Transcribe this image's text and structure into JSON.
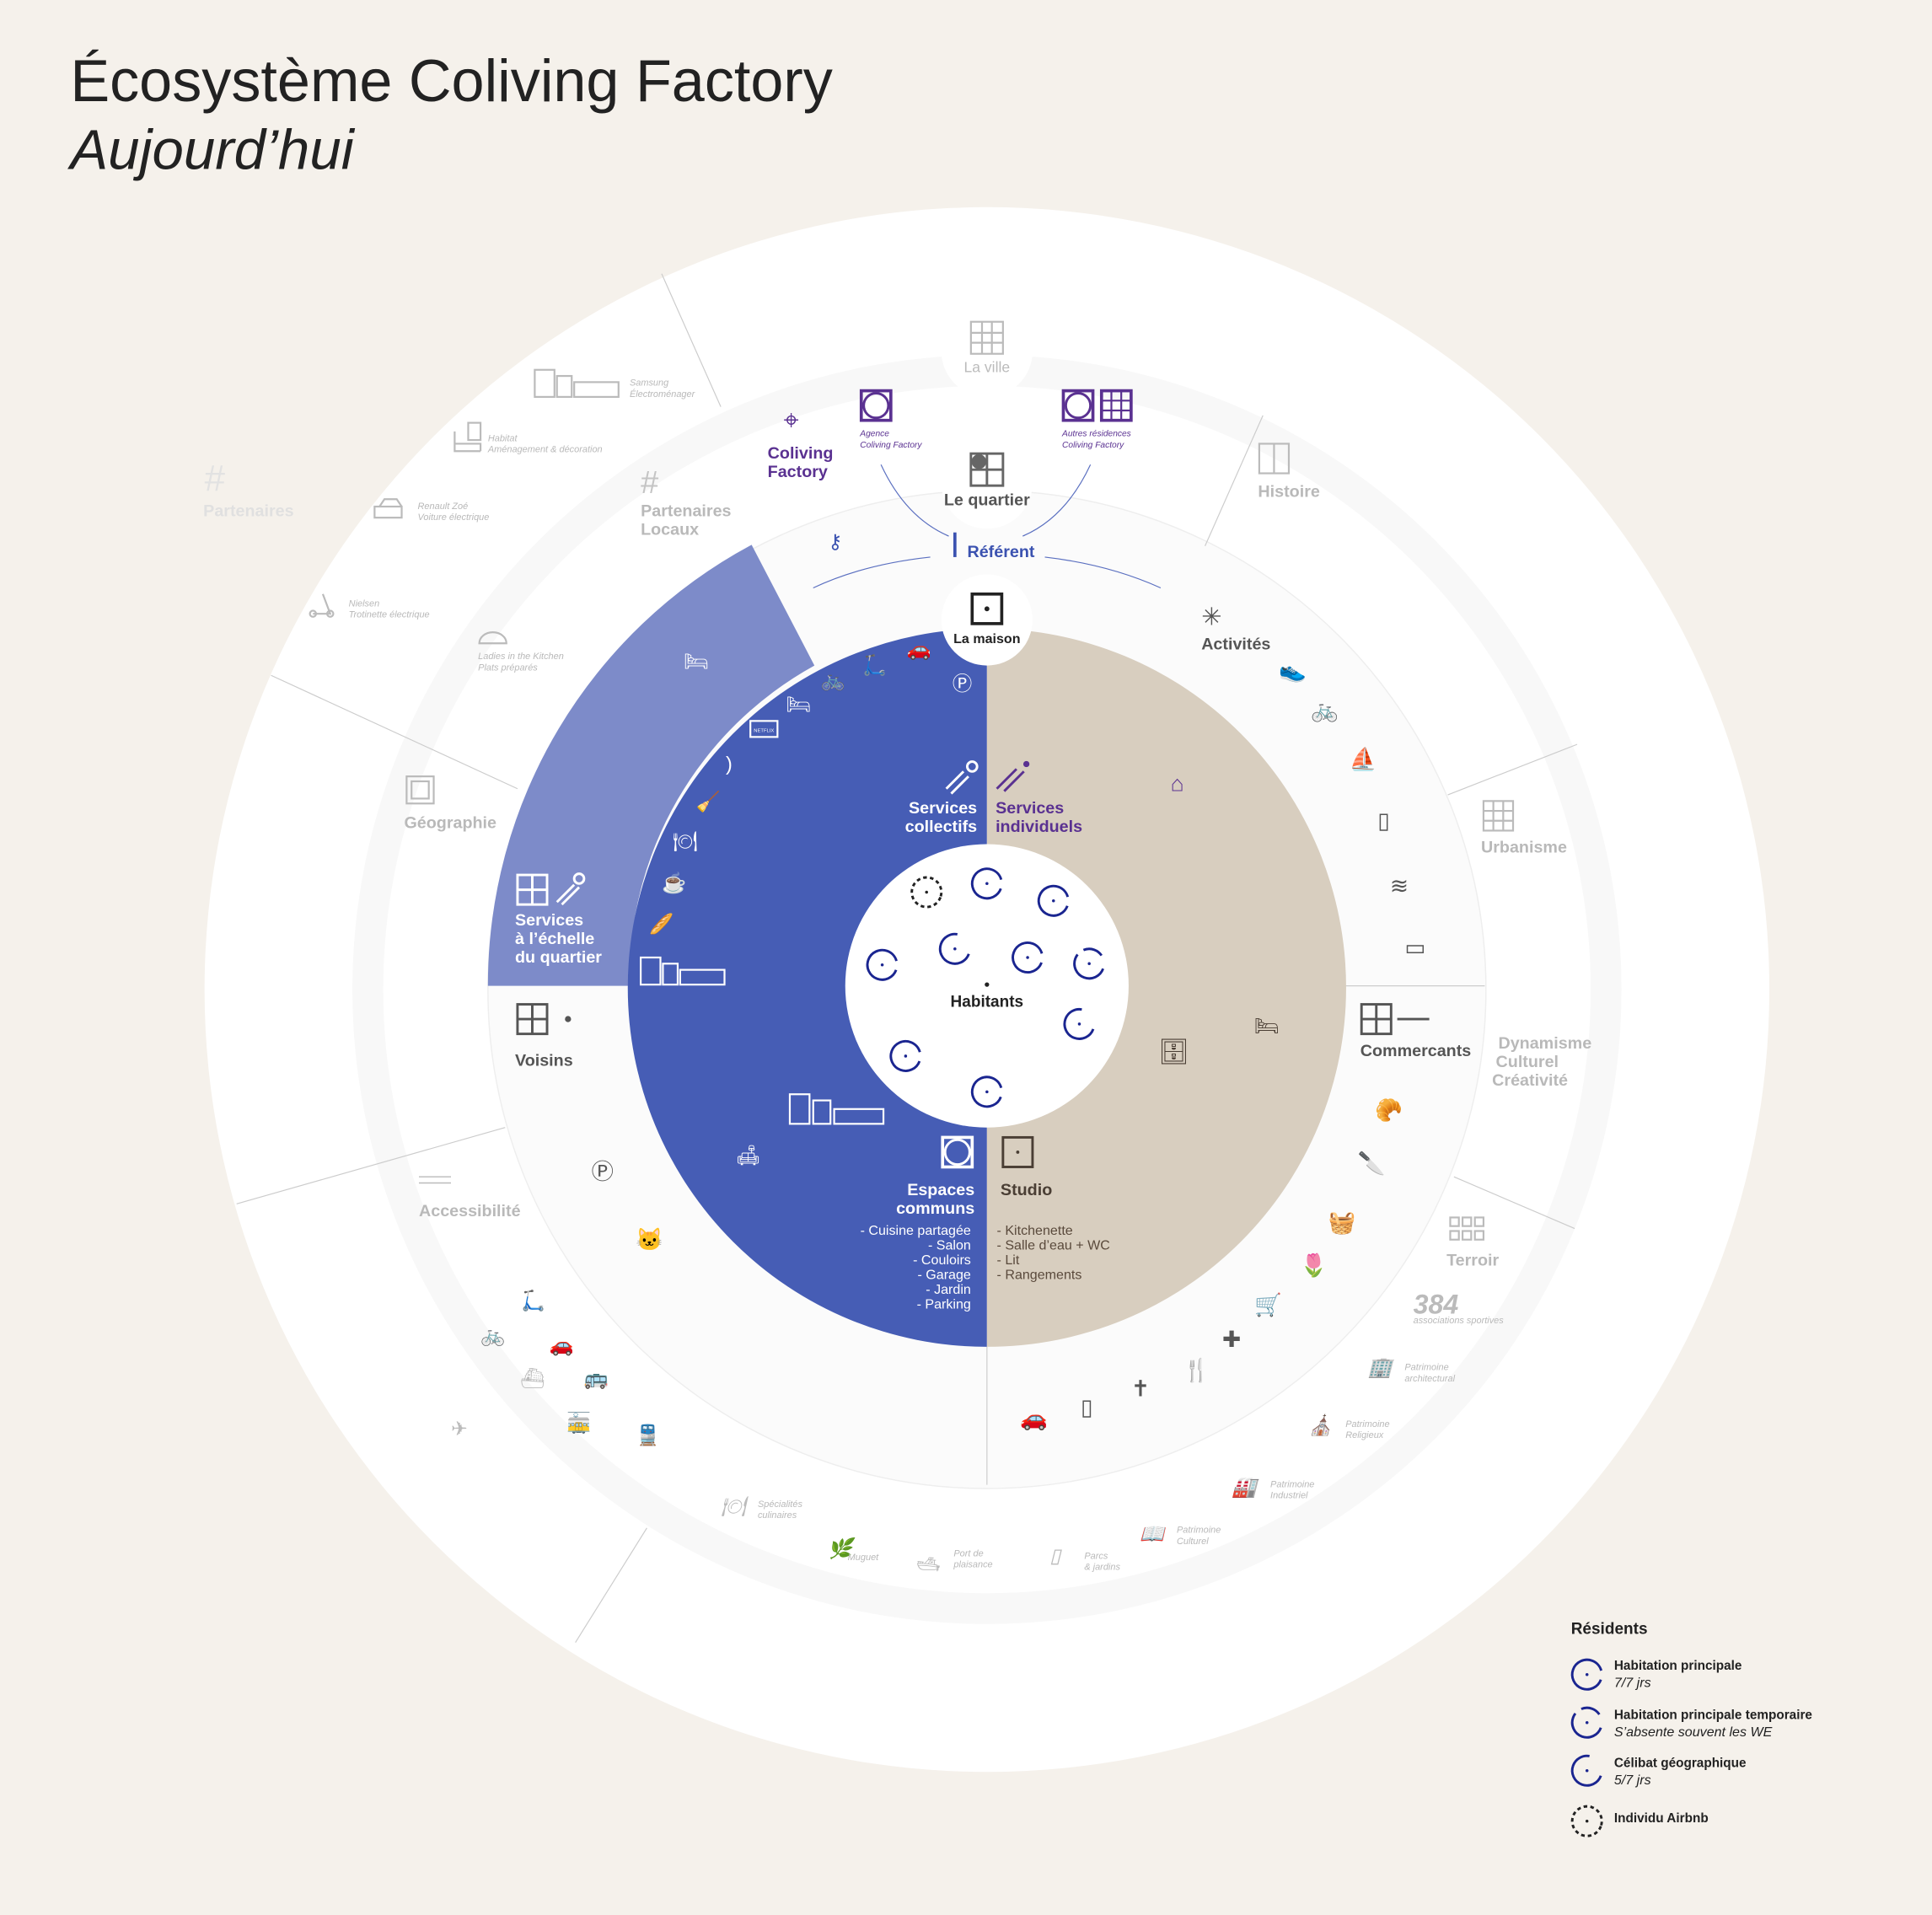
{
  "header": {
    "title": "Écosystème Coliving Factory",
    "subtitle": "Aujourd’hui"
  },
  "colors": {
    "background": "#f5f1eb",
    "blue": "#465db5",
    "light_blue": "#7d8bc9",
    "beige": "#d8cebf",
    "purple": "#5a3191",
    "referent_blue": "#3b52b0",
    "grey_text": "#b9b9b9",
    "legend_navy": "#1a2590"
  },
  "levels": {
    "ville": "La ville",
    "quartier": "Le quartier",
    "maison": "La maison",
    "referent": "Référent",
    "center": "Habitants"
  },
  "coliving": {
    "title": "Coliving Factory",
    "agence": [
      "Agence",
      "Coliving Factory"
    ],
    "autres": [
      "Autres résidences",
      "Coliving Factory"
    ]
  },
  "outer_sectors": {
    "partenaires": "Partenaires",
    "geographie": "Géographie",
    "accessibilite": "Accessibilité",
    "histoire": "Histoire",
    "urbanisme": "Urbanisme",
    "dynamisme": [
      "Dynamisme",
      "Culturel",
      "Créativité"
    ],
    "terroir": "Terroir"
  },
  "partners": [
    {
      "name": "Samsung",
      "desc": "Électroménager",
      "icon": "kitchen-icon"
    },
    {
      "name": "Habitat",
      "desc": "Aménagement & décoration",
      "icon": "furniture-icon"
    },
    {
      "name": "Renault Zoé",
      "desc": "Voiture électrique",
      "icon": "electric-car-icon"
    },
    {
      "name": "Nielsen",
      "desc": "Trotinette électrique",
      "icon": "scooter-icon"
    },
    {
      "name": "Ladies in the Kitchen",
      "desc": "Plats préparés",
      "icon": "cloche-icon"
    }
  ],
  "quartier_sectors": {
    "partenaires_locaux": [
      "Partenaires",
      "Locaux"
    ],
    "services_quartier": [
      "Services",
      "à l’échelle",
      "du quartier"
    ],
    "voisins": "Voisins",
    "activites": "Activités",
    "commercants": "Commercants"
  },
  "terroir_items": [
    {
      "value": "384",
      "desc": "associations sportives"
    },
    {
      "name": "Patrimoine",
      "desc": "architectural"
    },
    {
      "name": "Patrimoine",
      "desc": "Religieux"
    },
    {
      "name": "Patrimoine",
      "desc": "Industriel"
    },
    {
      "name": "Patrimoine",
      "desc": "Culturel"
    },
    {
      "name": "Parcs",
      "desc": "& jardins"
    },
    {
      "name": "Port de",
      "desc": "plaisance"
    },
    {
      "name": "Muguet",
      "desc": ""
    },
    {
      "name": "Spécialités",
      "desc": "culinaires"
    }
  ],
  "maison": {
    "services_collectifs": [
      "Services",
      "collectifs"
    ],
    "services_individuels": [
      "Services",
      "individuels"
    ],
    "espaces_communs": {
      "title": [
        "Espaces",
        "communs"
      ],
      "items": [
        "- Cuisine partagée",
        "- Salon",
        "- Couloirs",
        "- Garage",
        "- Jardin",
        "- Parking"
      ]
    },
    "studio": {
      "title": "Studio",
      "items": [
        "- Kitchenette",
        "- Salle d’eau + WC",
        "- Lit",
        "- Rangements"
      ]
    },
    "tv_label": "NETFLIX"
  },
  "legend": {
    "title": "Résidents",
    "items": [
      {
        "label": "Habitation principale",
        "sub": "7/7 jrs",
        "style": "solid-gap"
      },
      {
        "label": "Habitation principale temporaire",
        "sub": "S’absente souvent les WE",
        "style": "gapped"
      },
      {
        "label": "Célibat géographique",
        "sub": "5/7 jrs",
        "style": "open-arc"
      },
      {
        "label": "Individu Airbnb",
        "sub": "",
        "style": "dashed"
      }
    ]
  }
}
